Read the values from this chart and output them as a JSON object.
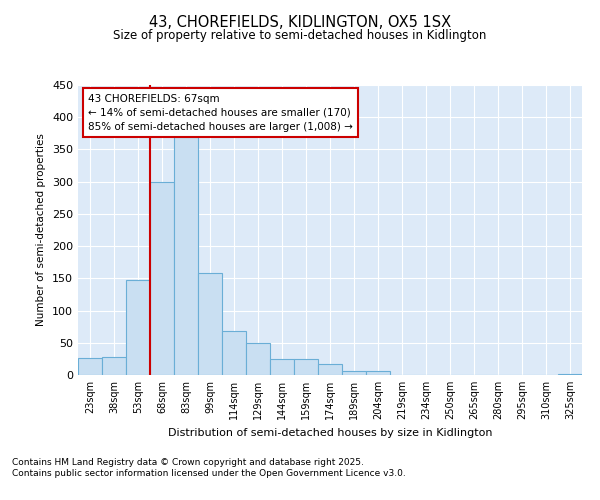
{
  "title1": "43, CHOREFIELDS, KIDLINGTON, OX5 1SX",
  "title2": "Size of property relative to semi-detached houses in Kidlington",
  "xlabel": "Distribution of semi-detached houses by size in Kidlington",
  "ylabel": "Number of semi-detached properties",
  "categories": [
    "23sqm",
    "38sqm",
    "53sqm",
    "68sqm",
    "83sqm",
    "99sqm",
    "114sqm",
    "129sqm",
    "144sqm",
    "159sqm",
    "174sqm",
    "189sqm",
    "204sqm",
    "219sqm",
    "234sqm",
    "250sqm",
    "265sqm",
    "280sqm",
    "295sqm",
    "310sqm",
    "325sqm"
  ],
  "values": [
    27,
    28,
    147,
    300,
    370,
    158,
    68,
    50,
    25,
    25,
    17,
    6,
    6,
    0,
    0,
    0,
    0,
    0,
    0,
    0,
    2
  ],
  "bar_color": "#c9dff2",
  "bar_edge_color": "#6aaed6",
  "vline_x": 2.5,
  "vline_color": "#cc0000",
  "annotation_text": "43 CHOREFIELDS: 67sqm\n← 14% of semi-detached houses are smaller (170)\n85% of semi-detached houses are larger (1,008) →",
  "annotation_box_color": "#ffffff",
  "annotation_box_edge": "#cc0000",
  "ylim": [
    0,
    450
  ],
  "yticks": [
    0,
    50,
    100,
    150,
    200,
    250,
    300,
    350,
    400,
    450
  ],
  "footer1": "Contains HM Land Registry data © Crown copyright and database right 2025.",
  "footer2": "Contains public sector information licensed under the Open Government Licence v3.0.",
  "bg_color": "#ddeaf8",
  "fig_bg_color": "#ffffff"
}
